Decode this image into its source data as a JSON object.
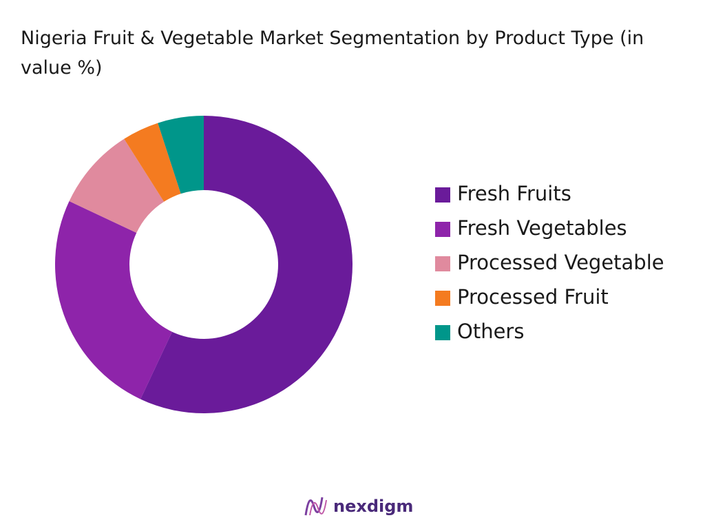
{
  "chart_data": {
    "type": "donut",
    "title": "Nigeria Fruit & Vegetable Market Segmentation by Product Type (in value %)",
    "categories": [
      "Fresh Fruits",
      "Fresh Vegetables",
      "Processed Vegetable",
      "Processed Fruit",
      "Others"
    ],
    "values": [
      57,
      25,
      9,
      4,
      5
    ],
    "colors": [
      "#6a1b9a",
      "#8e24aa",
      "#e08a9e",
      "#f47b20",
      "#00968a"
    ],
    "legend": "right"
  },
  "footer": {
    "brand": "nexdigm"
  }
}
